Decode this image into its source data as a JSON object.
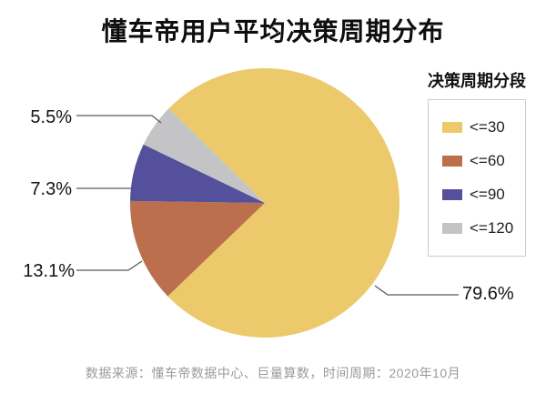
{
  "title": "懂车帝用户平均决策周期分布",
  "legend": {
    "title": "决策周期分段",
    "items": [
      {
        "label": "<=30",
        "color": "#ECC96A"
      },
      {
        "label": "<=60",
        "color": "#BB6F4D"
      },
      {
        "label": "<=90",
        "color": "#54509B"
      },
      {
        "label": "<=120",
        "color": "#C4C4C6"
      }
    ]
  },
  "chart_data": {
    "type": "pie",
    "title": "懂车帝用户平均决策周期分布",
    "legend_title": "决策周期分段",
    "legend_position": "right",
    "categories": [
      "<=30",
      "<=60",
      "<=90",
      "<=120"
    ],
    "values": [
      79.6,
      13.1,
      7.3,
      5.5
    ],
    "labels": [
      "79.6%",
      "13.1%",
      "7.3%",
      "5.5%"
    ],
    "colors": [
      "#ECC96A",
      "#BB6F4D",
      "#54509B",
      "#C4C4C6"
    ],
    "unit": "%",
    "start_angle_deg": 314.5,
    "direction": "clockwise"
  },
  "footer": "数据来源：懂车帝数据中心、巨量算数，时间周期：2020年10月"
}
